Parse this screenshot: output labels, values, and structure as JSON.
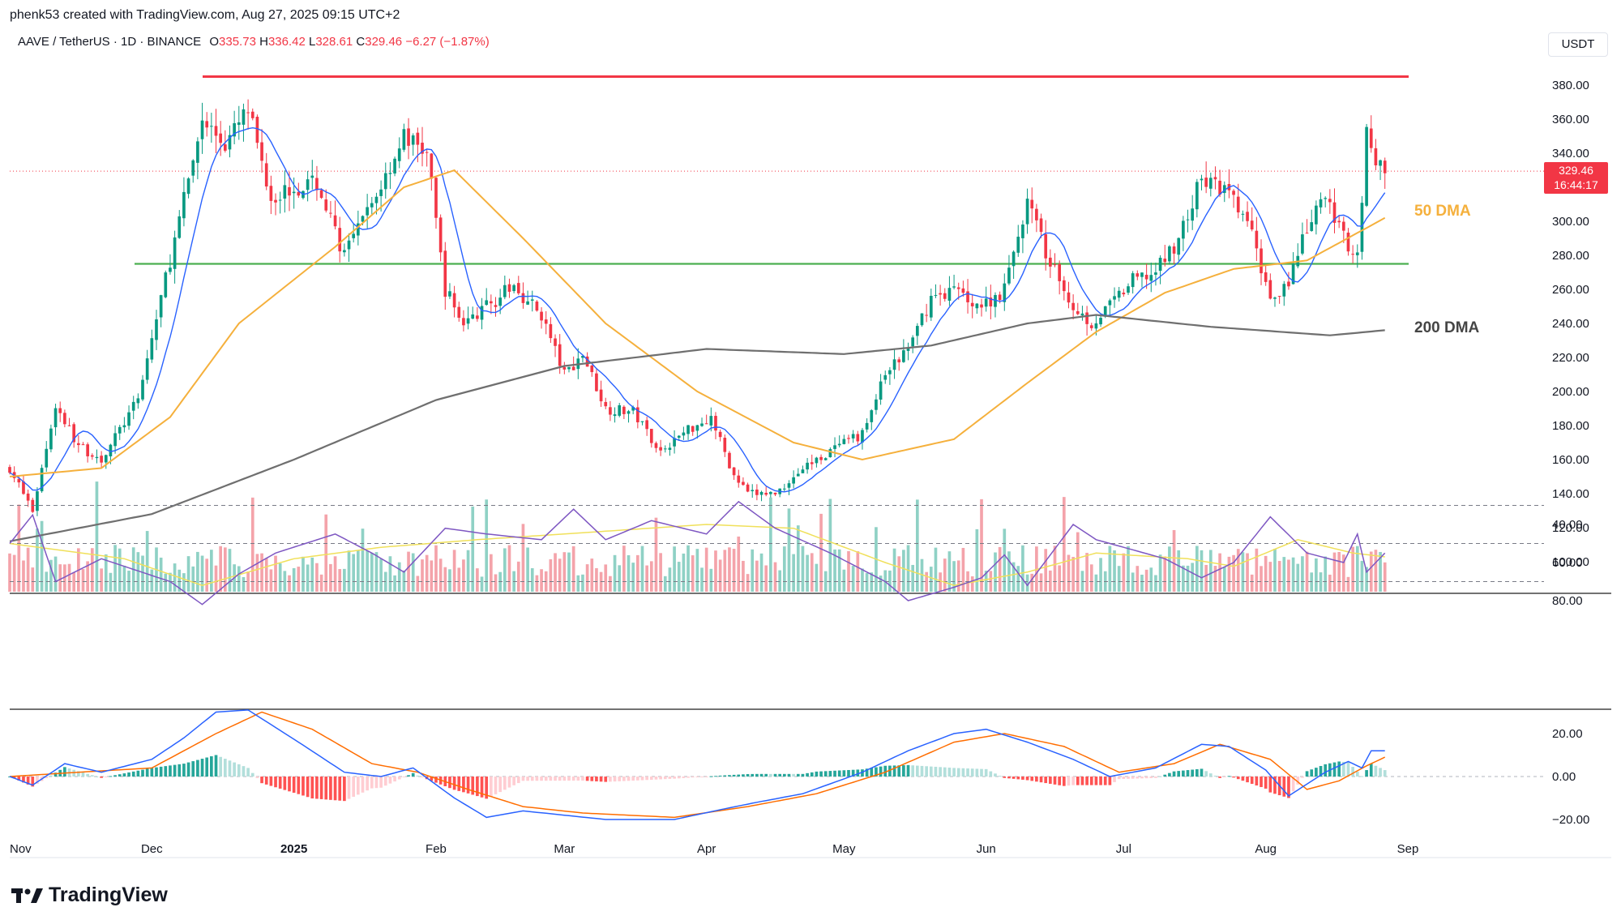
{
  "header": {
    "credit": "phenk53 created with TradingView.com, Aug 27, 2025 09:15 UTC+2"
  },
  "legend": {
    "symbol": "AAVE / TetherUS · 1D · BINANCE",
    "o_label": "O",
    "o": "335.73",
    "h_label": "H",
    "h": "336.42",
    "l_label": "L",
    "l": "328.61",
    "c_label": "C",
    "c": "329.46",
    "change": "−6.27 (−1.87%)"
  },
  "currency_button": "USDT",
  "price_tag": {
    "price": "329.46",
    "countdown": "16:44:17"
  },
  "labels": {
    "ma50": "50 DMA",
    "ma200": "200 DMA"
  },
  "brand": "TradingView",
  "colors": {
    "up": "#089981",
    "down": "#f23645",
    "ma50": "#f5b03c",
    "ma200": "#6f6f6f",
    "ma_fast": "#2962ff",
    "resistance": "#f23645",
    "support": "#4caf50",
    "rsi": "#7e57c2",
    "rsi_ma": "#f0e05a",
    "macd": "#2962ff",
    "signal": "#ff6d00"
  },
  "chart_data": [
    {
      "type": "candlestick",
      "title": "AAVE / TetherUS · 1D · BINANCE",
      "ylim": [
        80,
        395
      ],
      "y_ticks": [
        "380.00",
        "360.00",
        "340.00",
        "300.00",
        "280.00",
        "260.00",
        "240.00",
        "220.00",
        "200.00",
        "180.00",
        "160.00",
        "140.00",
        "120.00",
        "100.00"
      ],
      "x_ticks": [
        "Nov",
        "Dec",
        "2025",
        "Feb",
        "Mar",
        "Apr",
        "May",
        "Jun",
        "Jul",
        "Aug",
        "Sep"
      ],
      "series_close_keypoints": [
        [
          "2024-10-31",
          155
        ],
        [
          "2024-11-05",
          130
        ],
        [
          "2024-11-10",
          192
        ],
        [
          "2024-11-15",
          168
        ],
        [
          "2024-11-20",
          160
        ],
        [
          "2024-11-28",
          195
        ],
        [
          "2024-12-03",
          255
        ],
        [
          "2024-12-07",
          300
        ],
        [
          "2024-12-12",
          360
        ],
        [
          "2024-12-17",
          345
        ],
        [
          "2024-12-22",
          365
        ],
        [
          "2024-12-27",
          315
        ],
        [
          "2025-01-01",
          320
        ],
        [
          "2025-01-06",
          322
        ],
        [
          "2025-01-12",
          280
        ],
        [
          "2025-01-18",
          310
        ],
        [
          "2025-01-25",
          350
        ],
        [
          "2025-01-30",
          340
        ],
        [
          "2025-02-03",
          260
        ],
        [
          "2025-02-07",
          240
        ],
        [
          "2025-02-12",
          250
        ],
        [
          "2025-02-18",
          262
        ],
        [
          "2025-02-24",
          245
        ],
        [
          "2025-03-01",
          210
        ],
        [
          "2025-03-05",
          222
        ],
        [
          "2025-03-10",
          190
        ],
        [
          "2025-03-16",
          188
        ],
        [
          "2025-03-22",
          165
        ],
        [
          "2025-03-28",
          178
        ],
        [
          "2025-04-02",
          185
        ],
        [
          "2025-04-07",
          150
        ],
        [
          "2025-04-10",
          140
        ],
        [
          "2025-04-16",
          140
        ],
        [
          "2025-04-22",
          155
        ],
        [
          "2025-04-28",
          165
        ],
        [
          "2025-05-05",
          175
        ],
        [
          "2025-05-10",
          210
        ],
        [
          "2025-05-15",
          225
        ],
        [
          "2025-05-20",
          255
        ],
        [
          "2025-05-25",
          260
        ],
        [
          "2025-05-31",
          250
        ],
        [
          "2025-06-05",
          260
        ],
        [
          "2025-06-10",
          312
        ],
        [
          "2025-06-15",
          275
        ],
        [
          "2025-06-20",
          250
        ],
        [
          "2025-06-24",
          240
        ],
        [
          "2025-06-28",
          250
        ],
        [
          "2025-07-03",
          265
        ],
        [
          "2025-07-08",
          270
        ],
        [
          "2025-07-13",
          290
        ],
        [
          "2025-07-18",
          325
        ],
        [
          "2025-07-23",
          318
        ],
        [
          "2025-07-28",
          300
        ],
        [
          "2025-08-02",
          255
        ],
        [
          "2025-08-06",
          265
        ],
        [
          "2025-08-10",
          295
        ],
        [
          "2025-08-14",
          315
        ],
        [
          "2025-08-18",
          290
        ],
        [
          "2025-08-21",
          280
        ],
        [
          "2025-08-23",
          352
        ],
        [
          "2025-08-25",
          335
        ],
        [
          "2025-08-27",
          329.46
        ]
      ],
      "ma50_keypoints": [
        [
          "2024-10-31",
          150
        ],
        [
          "2024-11-20",
          155
        ],
        [
          "2024-12-05",
          185
        ],
        [
          "2024-12-20",
          240
        ],
        [
          "2025-01-10",
          285
        ],
        [
          "2025-01-25",
          320
        ],
        [
          "2025-02-05",
          330
        ],
        [
          "2025-02-20",
          290
        ],
        [
          "2025-03-10",
          240
        ],
        [
          "2025-03-30",
          200
        ],
        [
          "2025-04-20",
          170
        ],
        [
          "2025-05-05",
          160
        ],
        [
          "2025-05-25",
          172
        ],
        [
          "2025-06-10",
          205
        ],
        [
          "2025-06-25",
          235
        ],
        [
          "2025-07-10",
          258
        ],
        [
          "2025-07-25",
          272
        ],
        [
          "2025-08-10",
          277
        ],
        [
          "2025-08-27",
          302
        ]
      ],
      "ma200_keypoints": [
        [
          "2024-10-31",
          112
        ],
        [
          "2024-12-01",
          128
        ],
        [
          "2025-01-01",
          160
        ],
        [
          "2025-02-01",
          195
        ],
        [
          "2025-03-01",
          215
        ],
        [
          "2025-04-01",
          225
        ],
        [
          "2025-05-01",
          222
        ],
        [
          "2025-05-20",
          227
        ],
        [
          "2025-06-10",
          240
        ],
        [
          "2025-06-25",
          245
        ],
        [
          "2025-07-20",
          238
        ],
        [
          "2025-08-15",
          233
        ],
        [
          "2025-08-27",
          236
        ]
      ],
      "resistance_level": 385,
      "support_level": 275,
      "last_price": 329.46
    },
    {
      "type": "line",
      "title": "",
      "ylim": [
        25,
        85
      ],
      "y_ticks": [
        "80.00",
        "60.00",
        "40.00"
      ],
      "band": [
        30,
        70
      ],
      "mid": 50,
      "rsi_keypoints": [
        [
          "2024-10-31",
          50
        ],
        [
          "2024-11-05",
          35
        ],
        [
          "2024-11-10",
          70
        ],
        [
          "2024-11-20",
          58
        ],
        [
          "2024-12-05",
          70
        ],
        [
          "2024-12-12",
          82
        ],
        [
          "2024-12-20",
          66
        ],
        [
          "2024-12-28",
          55
        ],
        [
          "2025-01-10",
          45
        ],
        [
          "2025-01-18",
          55
        ],
        [
          "2025-01-25",
          65
        ],
        [
          "2025-02-03",
          42
        ],
        [
          "2025-02-12",
          45
        ],
        [
          "2025-02-24",
          48
        ],
        [
          "2025-03-03",
          32
        ],
        [
          "2025-03-10",
          48
        ],
        [
          "2025-03-20",
          38
        ],
        [
          "2025-04-01",
          45
        ],
        [
          "2025-04-08",
          28
        ],
        [
          "2025-04-16",
          42
        ],
        [
          "2025-04-28",
          55
        ],
        [
          "2025-05-10",
          70
        ],
        [
          "2025-05-15",
          80
        ],
        [
          "2025-05-25",
          73
        ],
        [
          "2025-05-31",
          68
        ],
        [
          "2025-06-05",
          56
        ],
        [
          "2025-06-10",
          72
        ],
        [
          "2025-06-20",
          40
        ],
        [
          "2025-06-25",
          48
        ],
        [
          "2025-07-10",
          58
        ],
        [
          "2025-07-18",
          68
        ],
        [
          "2025-07-25",
          60
        ],
        [
          "2025-08-02",
          36
        ],
        [
          "2025-08-10",
          55
        ],
        [
          "2025-08-18",
          60
        ],
        [
          "2025-08-21",
          45
        ],
        [
          "2025-08-23",
          65
        ],
        [
          "2025-08-27",
          55
        ]
      ],
      "rsi_ma_keypoints": [
        [
          "2024-10-31",
          50
        ],
        [
          "2024-11-25",
          58
        ],
        [
          "2024-12-12",
          72
        ],
        [
          "2025-01-01",
          58
        ],
        [
          "2025-01-20",
          52
        ],
        [
          "2025-02-10",
          48
        ],
        [
          "2025-03-01",
          45
        ],
        [
          "2025-04-01",
          40
        ],
        [
          "2025-04-20",
          42
        ],
        [
          "2025-05-10",
          60
        ],
        [
          "2025-05-25",
          72
        ],
        [
          "2025-06-10",
          65
        ],
        [
          "2025-06-25",
          55
        ],
        [
          "2025-07-15",
          58
        ],
        [
          "2025-07-25",
          62
        ],
        [
          "2025-08-08",
          48
        ],
        [
          "2025-08-20",
          55
        ],
        [
          "2025-08-27",
          57
        ]
      ]
    },
    {
      "type": "line",
      "title": "",
      "ylim": [
        -26,
        31
      ],
      "y_ticks": [
        "20.00",
        "0.00",
        "−20.00"
      ],
      "macd_keypoints": [
        [
          "2024-10-31",
          0
        ],
        [
          "2024-11-05",
          -4
        ],
        [
          "2024-11-12",
          6
        ],
        [
          "2024-11-20",
          2
        ],
        [
          "2024-12-01",
          8
        ],
        [
          "2024-12-08",
          18
        ],
        [
          "2024-12-15",
          30
        ],
        [
          "2024-12-22",
          31
        ],
        [
          "2025-01-02",
          16
        ],
        [
          "2025-01-12",
          2
        ],
        [
          "2025-01-20",
          0
        ],
        [
          "2025-01-27",
          4
        ],
        [
          "2025-02-05",
          -10
        ],
        [
          "2025-02-12",
          -19
        ],
        [
          "2025-02-20",
          -16
        ],
        [
          "2025-03-01",
          -18
        ],
        [
          "2025-03-10",
          -20
        ],
        [
          "2025-03-25",
          -20
        ],
        [
          "2025-04-05",
          -15
        ],
        [
          "2025-04-12",
          -12
        ],
        [
          "2025-04-22",
          -8
        ],
        [
          "2025-05-05",
          2
        ],
        [
          "2025-05-15",
          12
        ],
        [
          "2025-05-25",
          20
        ],
        [
          "2025-06-01",
          22
        ],
        [
          "2025-06-10",
          16
        ],
        [
          "2025-06-20",
          8
        ],
        [
          "2025-06-28",
          0
        ],
        [
          "2025-07-08",
          4
        ],
        [
          "2025-07-18",
          15
        ],
        [
          "2025-07-24",
          14
        ],
        [
          "2025-08-01",
          3
        ],
        [
          "2025-08-06",
          -9
        ],
        [
          "2025-08-14",
          2
        ],
        [
          "2025-08-19",
          7
        ],
        [
          "2025-08-22",
          4
        ],
        [
          "2025-08-24",
          12
        ],
        [
          "2025-08-27",
          12
        ]
      ],
      "signal_keypoints": [
        [
          "2024-10-31",
          0
        ],
        [
          "2024-11-15",
          2
        ],
        [
          "2024-12-01",
          4
        ],
        [
          "2024-12-15",
          20
        ],
        [
          "2024-12-25",
          30
        ],
        [
          "2025-01-05",
          22
        ],
        [
          "2025-01-18",
          6
        ],
        [
          "2025-01-28",
          2
        ],
        [
          "2025-02-08",
          -6
        ],
        [
          "2025-02-20",
          -14
        ],
        [
          "2025-03-05",
          -17
        ],
        [
          "2025-03-25",
          -19
        ],
        [
          "2025-04-10",
          -14
        ],
        [
          "2025-04-25",
          -8
        ],
        [
          "2025-05-10",
          2
        ],
        [
          "2025-05-25",
          16
        ],
        [
          "2025-06-05",
          20
        ],
        [
          "2025-06-18",
          14
        ],
        [
          "2025-06-30",
          2
        ],
        [
          "2025-07-12",
          6
        ],
        [
          "2025-07-22",
          15
        ],
        [
          "2025-08-02",
          8
        ],
        [
          "2025-08-10",
          -6
        ],
        [
          "2025-08-17",
          -2
        ],
        [
          "2025-08-23",
          5
        ],
        [
          "2025-08-27",
          9
        ]
      ]
    }
  ]
}
